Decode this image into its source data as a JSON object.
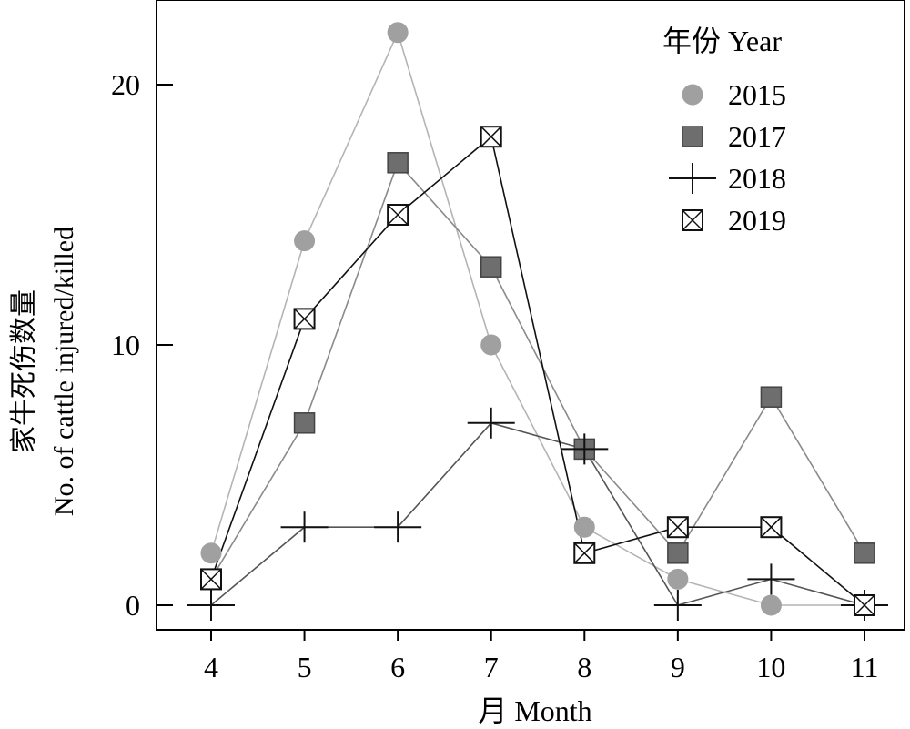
{
  "chart_data": {
    "type": "line",
    "xlabel": "月 Month",
    "ylabel_line1": "家牛死伤数量",
    "ylabel_line2": "No. of cattle injured/killed",
    "x": [
      4,
      5,
      6,
      7,
      8,
      9,
      10,
      11
    ],
    "x_tick_labels": [
      "4",
      "5",
      "6",
      "7",
      "8",
      "9",
      "10",
      "11"
    ],
    "y_ticks": [
      0,
      10,
      20
    ],
    "y_tick_labels": [
      "0",
      "10",
      "20"
    ],
    "legend_title": "年份 Year",
    "legend_position": "top-right",
    "series": [
      {
        "name": "2015",
        "marker": "circle",
        "color": "#a0a0a0",
        "line_color": "#b4b4b4",
        "values": [
          2,
          14,
          22,
          10,
          3,
          1,
          0,
          0
        ]
      },
      {
        "name": "2017",
        "marker": "square",
        "color": "#6e6e6e",
        "line_color": "#8a8a8a",
        "values": [
          1,
          7,
          17,
          13,
          6,
          2,
          8,
          2
        ]
      },
      {
        "name": "2018",
        "marker": "plus",
        "color": "#111111",
        "line_color": "#555555",
        "values": [
          0,
          3,
          3,
          7,
          6,
          0,
          1,
          0
        ]
      },
      {
        "name": "2019",
        "marker": "boxcross",
        "color": "#111111",
        "line_color": "#111111",
        "values": [
          1,
          11,
          15,
          18,
          2,
          3,
          3,
          0
        ]
      }
    ]
  }
}
